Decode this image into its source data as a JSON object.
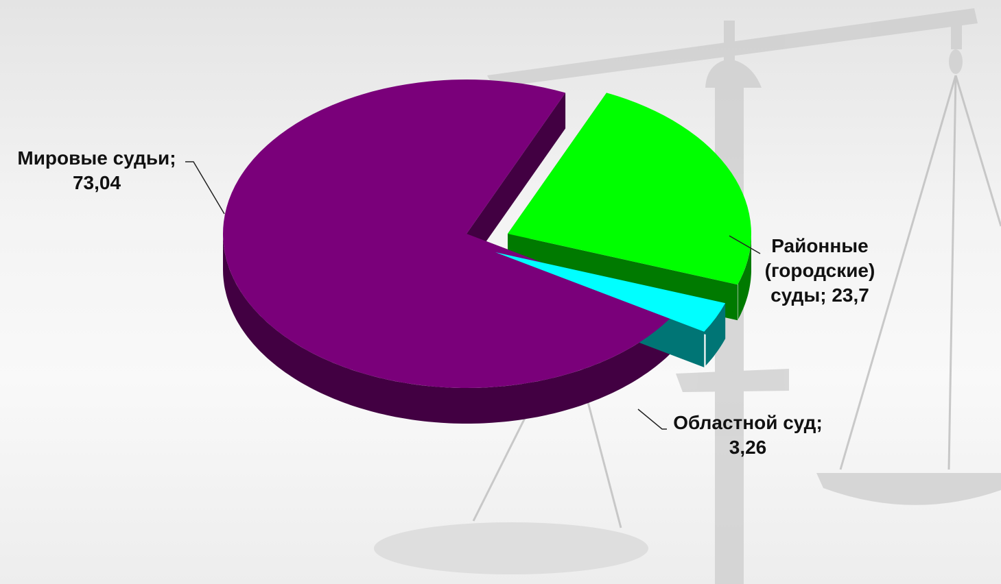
{
  "chart_data": {
    "type": "pie",
    "variant": "3d-exploded",
    "title": "",
    "slices": [
      {
        "label": "Мировые судьи",
        "value": 73.04,
        "value_text": "73,04",
        "color": "#7a007a",
        "side_color": "#420042"
      },
      {
        "label": "Районные (городские) суды",
        "value": 23.7,
        "value_text": "23,7",
        "color": "#00ff00",
        "side_color": "#007a00"
      },
      {
        "label": "Областной суд",
        "value": 3.26,
        "value_text": "3,26",
        "color": "#00ffff",
        "side_color": "#007575"
      }
    ],
    "data_labels": {
      "slice_0": [
        "Мировые судьи;",
        "73,04"
      ],
      "slice_1": [
        "Районные",
        "(городские)",
        "суды; 23,7"
      ],
      "slice_2": [
        "Областной суд;",
        "3,26"
      ]
    },
    "legend": "none",
    "background_image": "scales-of-justice"
  }
}
